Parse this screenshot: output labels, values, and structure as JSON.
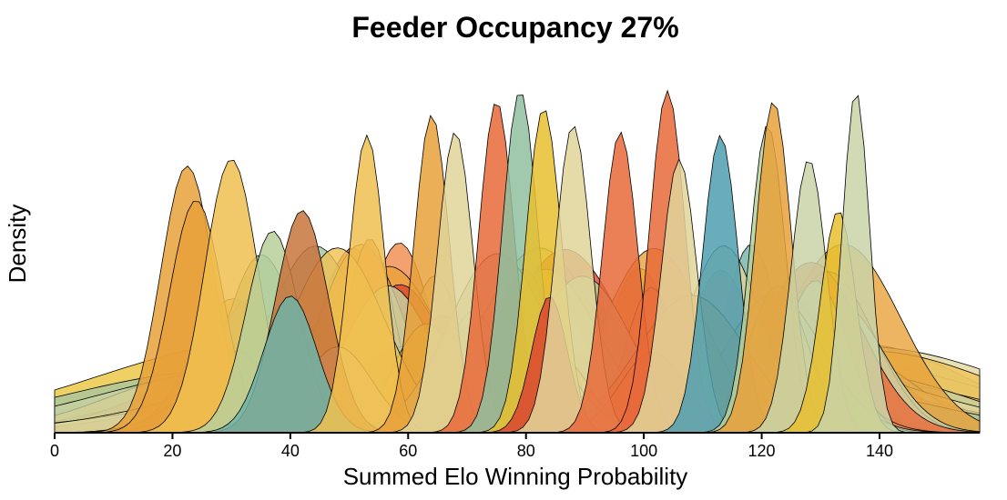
{
  "chart_data": {
    "type": "area",
    "title": "Feeder Occupancy 27%",
    "xlabel": "Summed Elo Winning Probability",
    "ylabel": "Density",
    "xlim": [
      0,
      157
    ],
    "xticks": [
      0,
      20,
      40,
      60,
      80,
      100,
      120,
      140
    ],
    "y_ticks_shown": false,
    "grid": false,
    "legend": "none",
    "palette": [
      "#e8a13a",
      "#f0c050",
      "#8fbf9f",
      "#6fb3a8",
      "#e86a3a",
      "#d9472f",
      "#c9d3a8",
      "#4f9fb0",
      "#e8c030",
      "#b8cf9a",
      "#f08a4b",
      "#e0d59a",
      "#a3c4a0",
      "#d6b656"
    ],
    "featured_peaks": [
      {
        "mean": 22.5,
        "height": 0.78,
        "color": "#e8a13a"
      },
      {
        "mean": 24,
        "height": 0.68,
        "color": "#e8a13a"
      },
      {
        "mean": 30,
        "height": 0.8,
        "color": "#f0c050"
      },
      {
        "mean": 37,
        "height": 0.59,
        "color": "#b8cf9a"
      },
      {
        "mean": 42,
        "height": 0.65,
        "color": "#c8743c"
      },
      {
        "mean": 40,
        "height": 0.4,
        "color": "#6fb3a8"
      },
      {
        "mean": 53,
        "height": 0.87,
        "color": "#f0c050"
      },
      {
        "mean": 64,
        "height": 0.93,
        "color": "#e8a13a"
      },
      {
        "mean": 68,
        "height": 0.88,
        "color": "#e0d59a"
      },
      {
        "mean": 75,
        "height": 0.97,
        "color": "#e86a3a"
      },
      {
        "mean": 79,
        "height": 1.0,
        "color": "#8fbf9f"
      },
      {
        "mean": 83,
        "height": 0.95,
        "color": "#e8c030"
      },
      {
        "mean": 84,
        "height": 0.4,
        "color": "#d9472f"
      },
      {
        "mean": 88,
        "height": 0.9,
        "color": "#e0d59a"
      },
      {
        "mean": 96,
        "height": 0.88,
        "color": "#e86a3a"
      },
      {
        "mean": 104,
        "height": 1.0,
        "color": "#e86a3a"
      },
      {
        "mean": 106,
        "height": 0.8,
        "color": "#e0d59a"
      },
      {
        "mean": 113,
        "height": 0.87,
        "color": "#4f9fb0"
      },
      {
        "mean": 121,
        "height": 0.9,
        "color": "#b8cf9a"
      },
      {
        "mean": 122,
        "height": 0.97,
        "color": "#e8a13a"
      },
      {
        "mean": 128,
        "height": 0.8,
        "color": "#c9d3a8"
      },
      {
        "mean": 133,
        "height": 0.65,
        "color": "#e8c030"
      },
      {
        "mean": 136,
        "height": 1.0,
        "color": "#c9d3a8"
      }
    ]
  }
}
